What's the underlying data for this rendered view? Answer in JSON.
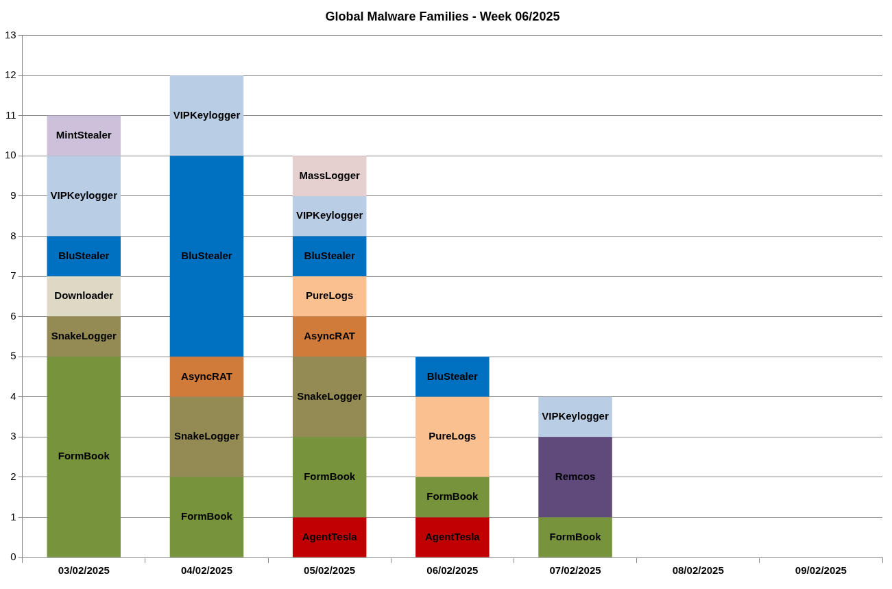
{
  "chart_data": {
    "type": "bar",
    "title": "Global Malware Families - Week 06/2025",
    "stacked": true,
    "grid": "y",
    "legend": false,
    "categories": [
      "03/02/2025",
      "04/02/2025",
      "05/02/2025",
      "06/02/2025",
      "07/02/2025",
      "08/02/2025",
      "09/02/2025"
    ],
    "ylim": [
      0,
      13
    ],
    "yticks": [
      0,
      1,
      2,
      3,
      4,
      5,
      6,
      7,
      8,
      9,
      10,
      11,
      12,
      13
    ],
    "series": [
      {
        "name": "AgentTesla",
        "color": "#c00000",
        "values": [
          null,
          null,
          1,
          1,
          null,
          null,
          null
        ]
      },
      {
        "name": "FormBook",
        "color": "#77933c",
        "values": [
          5,
          2,
          2,
          1,
          1,
          null,
          null
        ]
      },
      {
        "name": "SnakeLogger",
        "color": "#948a54",
        "values": [
          1,
          2,
          2,
          null,
          null,
          null,
          null
        ]
      },
      {
        "name": "Downloader",
        "color": "#ddd9c4",
        "values": [
          1,
          null,
          null,
          null,
          null,
          null,
          null
        ]
      },
      {
        "name": "AsyncRAT",
        "color": "#d17b3b",
        "values": [
          null,
          1,
          1,
          null,
          null,
          null,
          null
        ]
      },
      {
        "name": "PureLogs",
        "color": "#fac090",
        "values": [
          null,
          null,
          1,
          2,
          null,
          null,
          null
        ]
      },
      {
        "name": "Remcos",
        "color": "#604a7b",
        "values": [
          null,
          null,
          null,
          null,
          2,
          null,
          null
        ]
      },
      {
        "name": "BluStealer",
        "color": "#0070c0",
        "values": [
          1,
          5,
          1,
          1,
          null,
          null,
          null
        ]
      },
      {
        "name": "VIPKeylogger",
        "color": "#b9cde5",
        "values": [
          2,
          2,
          1,
          null,
          1,
          null,
          null
        ]
      },
      {
        "name": "MintStealer",
        "color": "#ccc0da",
        "values": [
          1,
          null,
          null,
          null,
          null,
          null,
          null
        ]
      },
      {
        "name": "MassLogger",
        "color": "#e6cfcf",
        "values": [
          null,
          null,
          1,
          null,
          null,
          null,
          null
        ]
      }
    ]
  }
}
